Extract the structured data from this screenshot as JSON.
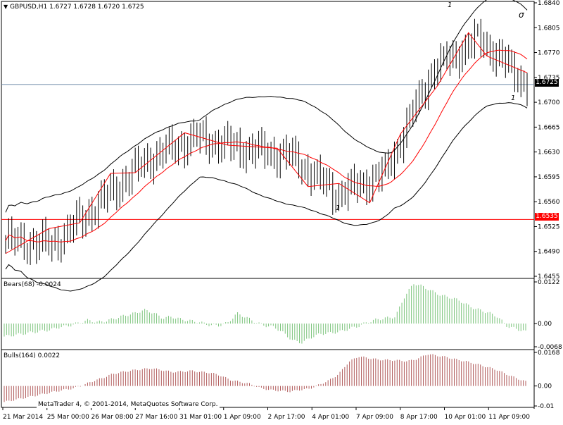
{
  "main": {
    "header": {
      "symbol": "GBPUSD,H1",
      "ohlc": "1.6727 1.6728 1.6720 1.6725"
    },
    "price_axis_labels": [
      "1.6840",
      "1.6805",
      "1.6770",
      "1.6735",
      "1.6700",
      "1.6665",
      "1.6630",
      "1.6595",
      "1.6560",
      "1.6525",
      "1.6490",
      "1.6455"
    ],
    "current_price_tag": "1.6725",
    "red_line_tag": "1.6535",
    "annotations": [
      "1",
      "1",
      "1"
    ],
    "colors": {
      "red_line": "#ff0000",
      "horizontal_line": "#6e8aa8",
      "bands": "#000000",
      "ma": "#ff0000"
    }
  },
  "bears": {
    "label": "Bears(68) -0.0024",
    "axis_labels": [
      "0.0122",
      "0.00",
      "-0.0068"
    ],
    "color": "#7cc47c"
  },
  "bulls": {
    "label": "Bulls(164) 0.0022",
    "axis_labels": [
      "0.0168",
      "0.00",
      "-0.01"
    ],
    "color": "#b05a5a"
  },
  "time_axis": [
    "21 Mar 2014",
    "25 Mar 00:00",
    "26 Mar 08:00",
    "27 Mar 16:00",
    "31 Mar 01:00",
    "1 Apr 09:00",
    "2 Apr 17:00",
    "4 Apr 01:00",
    "7 Apr 09:00",
    "8 Apr 17:00",
    "10 Apr 01:00",
    "11 Apr 09:00"
  ],
  "copyright": "MetaTrader 4, © 2001-2014, MetaQuotes Software Corp.",
  "chart_data": [
    {
      "type": "line",
      "title": "GBPUSD,H1",
      "x": [
        "21 Mar 2014",
        "25 Mar 00:00",
        "26 Mar 08:00",
        "27 Mar 16:00",
        "31 Mar 01:00",
        "1 Apr 09:00",
        "2 Apr 17:00",
        "4 Apr 01:00",
        "7 Apr 09:00",
        "8 Apr 17:00",
        "10 Apr 01:00",
        "11 Apr 09:00"
      ],
      "ylim": [
        1.6455,
        1.684
      ],
      "series": [
        {
          "values": [
            1.6505,
            1.65,
            1.656,
            1.662,
            1.665,
            1.6635,
            1.6625,
            1.657,
            1.66,
            1.6745,
            1.679,
            1.6725
          ]
        }
      ]
    },
    {
      "type": "bar",
      "title": "Bears(68) -0.0024",
      "ylim": [
        -0.0068,
        0.0122
      ],
      "values": [
        -0.0038,
        -0.0034,
        -0.003,
        -0.0026,
        -0.0022,
        -0.0018,
        -0.001,
        -0.0006,
        0.0002,
        0.001,
        0.0004,
        0.0008,
        0.0016,
        0.0024,
        0.003,
        0.004,
        0.0032,
        0.0016,
        0.002,
        0.0012,
        0.0008,
        0.0004,
        -0.0004,
        -0.0006,
        0.0002,
        0.003,
        0.0018,
        0.0004,
        -0.0006,
        -0.001,
        -0.0028,
        -0.005,
        -0.0056,
        -0.004,
        -0.003,
        -0.0028,
        -0.0024,
        -0.0016,
        -0.0008,
        0.0004,
        0.0012,
        0.0016,
        0.002,
        0.008,
        0.0118,
        0.0108,
        0.0094,
        0.0082,
        0.0076,
        0.0066,
        0.005,
        0.004,
        0.0032,
        0.002,
        -0.0008,
        -0.0016,
        -0.0024
      ]
    },
    {
      "type": "bar",
      "title": "Bulls(164) 0.0022",
      "ylim": [
        -0.01,
        0.0168
      ],
      "values": [
        -0.008,
        -0.007,
        -0.006,
        -0.005,
        -0.004,
        -0.003,
        -0.002,
        -0.0012,
        0.0004,
        0.0024,
        0.004,
        0.006,
        0.007,
        0.0078,
        0.0084,
        0.0088,
        0.008,
        0.007,
        0.0072,
        0.0076,
        0.007,
        0.0066,
        0.0052,
        0.003,
        0.002,
        0.001,
        -0.001,
        -0.002,
        -0.0024,
        -0.0028,
        -0.002,
        -0.0014,
        0.0006,
        0.0028,
        0.006,
        0.012,
        0.0148,
        0.014,
        0.0132,
        0.013,
        0.0128,
        0.0124,
        0.0136,
        0.016,
        0.0152,
        0.0144,
        0.0132,
        0.0122,
        0.011,
        0.0096,
        0.0082,
        0.006,
        0.004,
        0.0022
      ]
    }
  ]
}
